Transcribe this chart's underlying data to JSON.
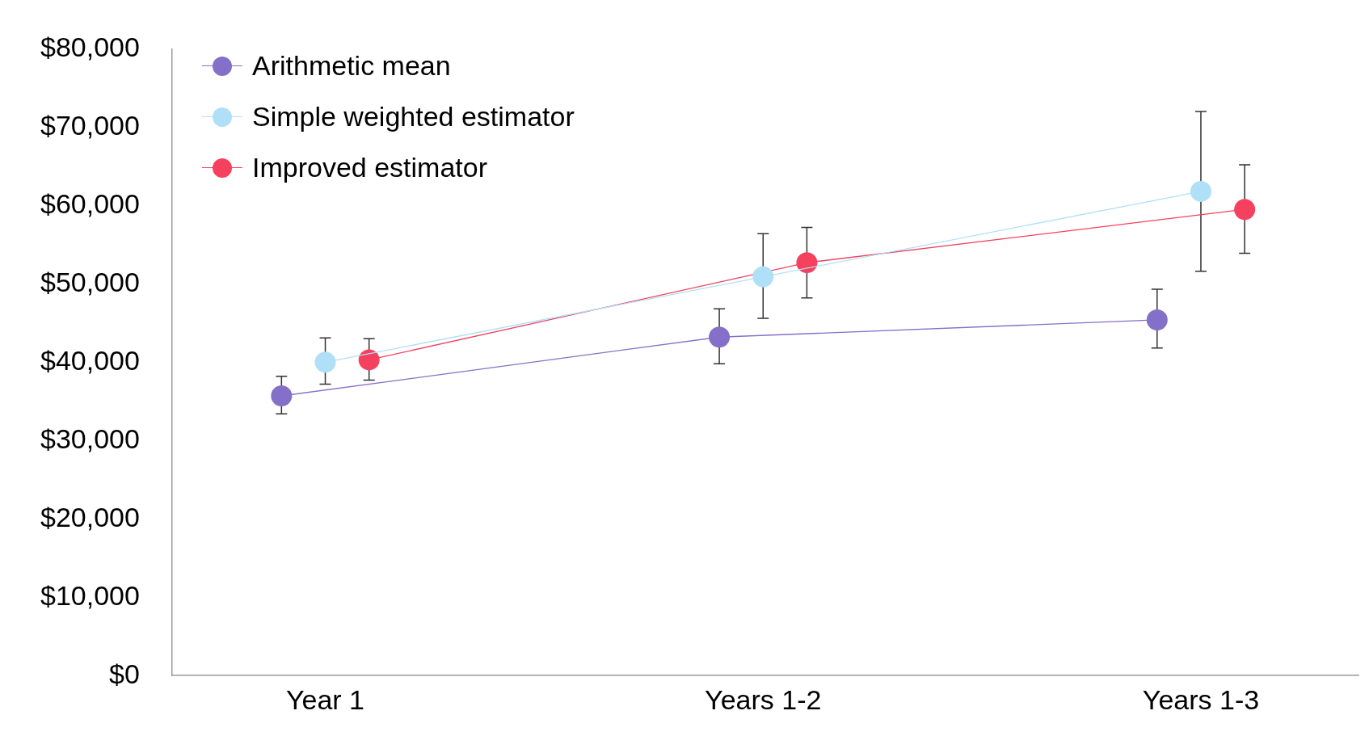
{
  "chart_data": {
    "type": "line",
    "categories": [
      "Year 1",
      "Years 1-2",
      "Years 1-3"
    ],
    "ylim": [
      0,
      80000
    ],
    "yticks": [
      {
        "value": 0,
        "label": "$0"
      },
      {
        "value": 10000,
        "label": "$10,000"
      },
      {
        "value": 20000,
        "label": "$20,000"
      },
      {
        "value": 30000,
        "label": "$30,000"
      },
      {
        "value": 40000,
        "label": "$40,000"
      },
      {
        "value": 50000,
        "label": "$50,000"
      },
      {
        "value": 60000,
        "label": "$60,000"
      },
      {
        "value": 70000,
        "label": "$70,000"
      },
      {
        "value": 80000,
        "label": "$80,000"
      }
    ],
    "grid": false,
    "legend": "top left",
    "marker": "circle",
    "line_style": "solid",
    "series": [
      {
        "name": "Arithmetic mean",
        "color": "#8470c8",
        "values": [
          35700,
          43200,
          45400
        ],
        "errors": [
          [
            33400,
            38200
          ],
          [
            39800,
            46800
          ],
          [
            41800,
            49300
          ]
        ]
      },
      {
        "name": "Simple weighted estimator",
        "color": "#b0e0f8",
        "values": [
          40000,
          50900,
          61800
        ],
        "errors": [
          [
            37200,
            43100
          ],
          [
            45600,
            56400
          ],
          [
            51600,
            72000
          ]
        ]
      },
      {
        "name": "Improved estimator",
        "color": "#f5405e",
        "values": [
          40300,
          52700,
          59500
        ],
        "errors": [
          [
            37700,
            43000
          ],
          [
            48200,
            57200
          ],
          [
            53900,
            65200
          ]
        ]
      }
    ]
  }
}
